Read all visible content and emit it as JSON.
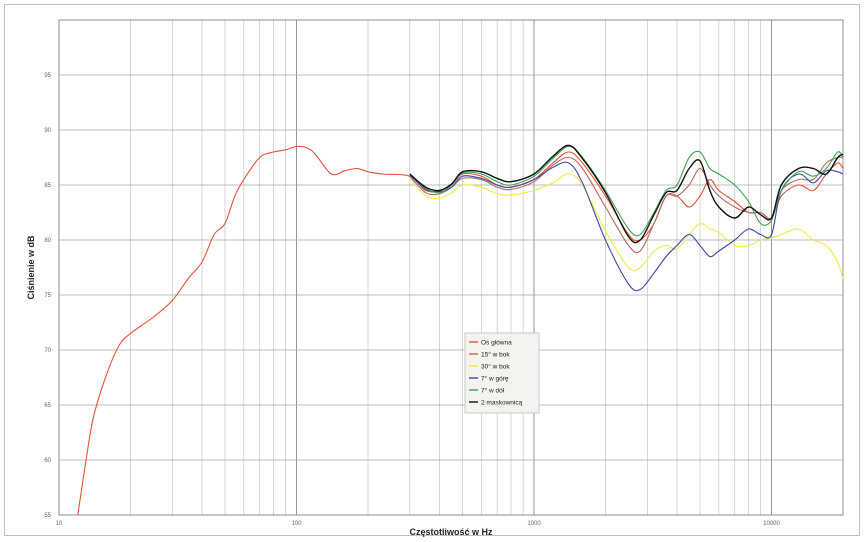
{
  "chart_data": {
    "type": "line",
    "xlabel": "Częstotliwość w Hz",
    "ylabel": "Ciśnienie w dB",
    "xscale": "log",
    "xlim": [
      10,
      20000
    ],
    "ylim": [
      55,
      100
    ],
    "grid": true,
    "x_tick_labels": [
      "10",
      "100",
      "1000",
      "10000"
    ],
    "y_tick_labels": [
      "55",
      "60",
      "65",
      "70",
      "75",
      "80",
      "85",
      "90",
      "95"
    ],
    "y_ticks": [
      55,
      60,
      65,
      70,
      75,
      80,
      85,
      90,
      95
    ],
    "x_ticks": [
      10,
      100,
      1000,
      10000
    ],
    "legend_position": "center",
    "series": [
      {
        "name": "Oś główna",
        "color": "#e8513a",
        "points": [
          [
            12,
            55
          ],
          [
            13,
            60
          ],
          [
            14,
            64
          ],
          [
            16,
            68
          ],
          [
            18,
            70.5
          ],
          [
            20,
            71.5
          ],
          [
            25,
            73
          ],
          [
            30,
            74.5
          ],
          [
            35,
            76.5
          ],
          [
            40,
            78
          ],
          [
            45,
            80.5
          ],
          [
            50,
            81.5
          ],
          [
            55,
            84
          ],
          [
            60,
            85.5
          ],
          [
            70,
            87.5
          ],
          [
            80,
            88
          ],
          [
            90,
            88.2
          ],
          [
            100,
            88.5
          ],
          [
            110,
            88.4
          ],
          [
            120,
            87.8
          ],
          [
            140,
            86
          ],
          [
            160,
            86.3
          ],
          [
            180,
            86.5
          ],
          [
            200,
            86.2
          ],
          [
            230,
            86
          ],
          [
            300,
            85.8
          ],
          [
            350,
            84.5
          ],
          [
            400,
            84.5
          ],
          [
            450,
            85
          ],
          [
            500,
            86
          ],
          [
            600,
            85.8
          ],
          [
            700,
            85
          ],
          [
            800,
            84.8
          ],
          [
            1000,
            85.5
          ],
          [
            1200,
            87
          ],
          [
            1400,
            88
          ],
          [
            1600,
            87
          ],
          [
            2000,
            84
          ],
          [
            2500,
            80.5
          ],
          [
            2800,
            80
          ],
          [
            3200,
            81.5
          ],
          [
            3600,
            84
          ],
          [
            4000,
            84
          ],
          [
            4500,
            83
          ],
          [
            5000,
            84
          ],
          [
            5500,
            85.5
          ],
          [
            6000,
            84.5
          ],
          [
            7000,
            83.5
          ],
          [
            8000,
            82.5
          ],
          [
            9000,
            82.5
          ],
          [
            10000,
            82
          ],
          [
            11000,
            84
          ],
          [
            13000,
            85
          ],
          [
            15000,
            84.5
          ],
          [
            17000,
            86
          ],
          [
            19000,
            87
          ],
          [
            20000,
            86.5
          ]
        ]
      },
      {
        "name": "15° w bok",
        "color": "#b56b60",
        "points": [
          [
            300,
            85.8
          ],
          [
            350,
            84.3
          ],
          [
            400,
            84.2
          ],
          [
            450,
            84.8
          ],
          [
            500,
            85.6
          ],
          [
            600,
            85.5
          ],
          [
            700,
            84.8
          ],
          [
            800,
            84.6
          ],
          [
            1000,
            85.3
          ],
          [
            1200,
            86.8
          ],
          [
            1400,
            87.5
          ],
          [
            1600,
            86.5
          ],
          [
            2000,
            83
          ],
          [
            2500,
            79.5
          ],
          [
            2800,
            79
          ],
          [
            3200,
            81.5
          ],
          [
            3600,
            84
          ],
          [
            4000,
            84
          ],
          [
            4500,
            85
          ],
          [
            5000,
            86.5
          ],
          [
            5500,
            85
          ],
          [
            6000,
            84
          ],
          [
            7000,
            83
          ],
          [
            8000,
            82.5
          ],
          [
            9000,
            82.5
          ],
          [
            10000,
            82
          ],
          [
            11000,
            84.5
          ],
          [
            13000,
            85.5
          ],
          [
            15000,
            85.5
          ],
          [
            17000,
            87
          ],
          [
            19000,
            87.5
          ],
          [
            20000,
            87.5
          ]
        ]
      },
      {
        "name": "30° w bok",
        "color": "#ecec4a",
        "points": [
          [
            300,
            85.6
          ],
          [
            350,
            84
          ],
          [
            400,
            83.8
          ],
          [
            450,
            84.3
          ],
          [
            500,
            85
          ],
          [
            600,
            84.8
          ],
          [
            700,
            84.2
          ],
          [
            800,
            84.1
          ],
          [
            1000,
            84.5
          ],
          [
            1200,
            85.2
          ],
          [
            1400,
            86
          ],
          [
            1600,
            85
          ],
          [
            2000,
            80.8
          ],
          [
            2500,
            77.5
          ],
          [
            2800,
            77.5
          ],
          [
            3200,
            79
          ],
          [
            3600,
            79.5
          ],
          [
            4000,
            79.2
          ],
          [
            4500,
            80.5
          ],
          [
            5000,
            81.5
          ],
          [
            5500,
            81
          ],
          [
            6000,
            80.7
          ],
          [
            7000,
            79.5
          ],
          [
            8000,
            79.5
          ],
          [
            9000,
            80
          ],
          [
            10000,
            80.2
          ],
          [
            11000,
            80.5
          ],
          [
            13000,
            81
          ],
          [
            15000,
            80
          ],
          [
            17000,
            79.5
          ],
          [
            19000,
            78
          ],
          [
            20000,
            76.5
          ]
        ]
      },
      {
        "name": "7° w górę",
        "color": "#3b4aa8",
        "points": [
          [
            300,
            85.9
          ],
          [
            350,
            84.6
          ],
          [
            400,
            84.4
          ],
          [
            450,
            84.8
          ],
          [
            500,
            85.8
          ],
          [
            600,
            85.6
          ],
          [
            700,
            85
          ],
          [
            800,
            84.8
          ],
          [
            1000,
            85.5
          ],
          [
            1200,
            86.6
          ],
          [
            1400,
            87
          ],
          [
            1600,
            85.2
          ],
          [
            2000,
            80
          ],
          [
            2500,
            76
          ],
          [
            2800,
            75.5
          ],
          [
            3200,
            77
          ],
          [
            3600,
            78.5
          ],
          [
            4000,
            79.5
          ],
          [
            4500,
            80.5
          ],
          [
            5000,
            79.5
          ],
          [
            5500,
            78.5
          ],
          [
            6000,
            79
          ],
          [
            7000,
            80
          ],
          [
            8000,
            81
          ],
          [
            9000,
            80.5
          ],
          [
            10000,
            80.5
          ],
          [
            11000,
            84.5
          ],
          [
            13000,
            86
          ],
          [
            15000,
            85.2
          ],
          [
            17000,
            86.3
          ],
          [
            19000,
            86.2
          ],
          [
            20000,
            86
          ]
        ]
      },
      {
        "name": "7° w dół",
        "color": "#3aa655",
        "points": [
          [
            300,
            86
          ],
          [
            350,
            84.7
          ],
          [
            400,
            84.3
          ],
          [
            450,
            85
          ],
          [
            500,
            86.1
          ],
          [
            600,
            86
          ],
          [
            700,
            85.3
          ],
          [
            800,
            85
          ],
          [
            1000,
            85.8
          ],
          [
            1200,
            87.4
          ],
          [
            1400,
            88.5
          ],
          [
            1600,
            87.5
          ],
          [
            2000,
            84.5
          ],
          [
            2500,
            81
          ],
          [
            2800,
            80.5
          ],
          [
            3200,
            82.5
          ],
          [
            3600,
            84.5
          ],
          [
            4000,
            85
          ],
          [
            4500,
            87.5
          ],
          [
            5000,
            88
          ],
          [
            5500,
            86.5
          ],
          [
            6000,
            86
          ],
          [
            7000,
            85
          ],
          [
            8000,
            83.5
          ],
          [
            9000,
            81.5
          ],
          [
            10000,
            81.8
          ],
          [
            11000,
            84.5
          ],
          [
            13000,
            86.2
          ],
          [
            15000,
            85.8
          ],
          [
            17000,
            86.5
          ],
          [
            19000,
            88
          ],
          [
            20000,
            87.5
          ]
        ]
      },
      {
        "name": "2 maskownicą",
        "color": "#111111",
        "points": [
          [
            300,
            86
          ],
          [
            350,
            84.8
          ],
          [
            400,
            84.5
          ],
          [
            450,
            85.1
          ],
          [
            500,
            86.2
          ],
          [
            600,
            86.2
          ],
          [
            700,
            85.6
          ],
          [
            800,
            85.3
          ],
          [
            1000,
            86
          ],
          [
            1200,
            87.6
          ],
          [
            1400,
            88.6
          ],
          [
            1600,
            87.4
          ],
          [
            2000,
            84.3
          ],
          [
            2500,
            80.3
          ],
          [
            2800,
            80
          ],
          [
            3200,
            82.3
          ],
          [
            3600,
            84.3
          ],
          [
            4000,
            84.5
          ],
          [
            4500,
            86.5
          ],
          [
            5000,
            87.2
          ],
          [
            5500,
            84.5
          ],
          [
            6000,
            83
          ],
          [
            7000,
            82
          ],
          [
            8000,
            83
          ],
          [
            9000,
            82.3
          ],
          [
            10000,
            82
          ],
          [
            11000,
            85
          ],
          [
            13000,
            86.5
          ],
          [
            15000,
            86.5
          ],
          [
            17000,
            86
          ],
          [
            19000,
            87.5
          ],
          [
            20000,
            87.8
          ]
        ]
      }
    ]
  }
}
